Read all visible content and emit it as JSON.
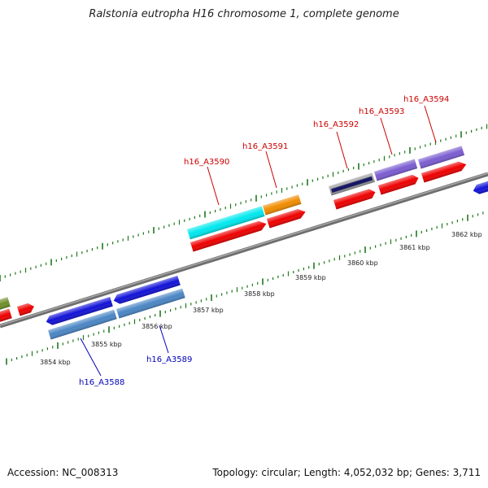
{
  "title": "Ralstonia eutropha H16 chromosome 1, complete genome",
  "footer": {
    "accession": "Accession: NC_008313",
    "summary": "Topology: circular; Length: 4,052,032 bp; Genes: 3,711"
  },
  "colors": {
    "backbone": "#8a8a8a",
    "tick": "#1e7a1e",
    "forward_label": "#cc0000",
    "reverse_label": "#0000bb"
  },
  "scale_labels": [
    "3854 kbp",
    "3855 kbp",
    "3856 kbp",
    "3857 kbp",
    "3858 kbp",
    "3859 kbp",
    "3860 kbp",
    "3861 kbp",
    "3862 kbp"
  ],
  "gene_labels": {
    "forward": [
      "h16_A3590",
      "h16_A3591",
      "h16_A3592",
      "h16_A3593",
      "h16_A3594"
    ],
    "reverse": [
      "h16_A3588",
      "h16_A3589"
    ]
  }
}
